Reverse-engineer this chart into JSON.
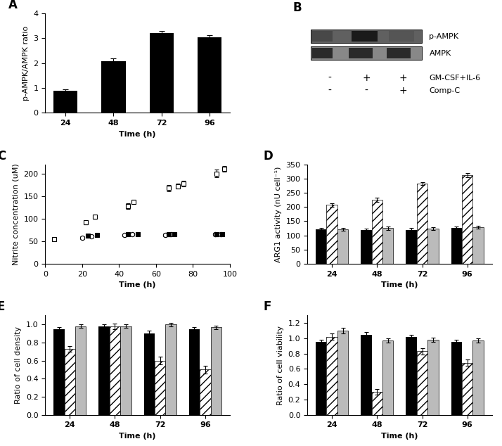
{
  "panel_A": {
    "times": [
      24,
      48,
      72,
      96
    ],
    "values": [
      0.88,
      2.08,
      3.22,
      3.05
    ],
    "errors": [
      0.05,
      0.12,
      0.08,
      0.06
    ],
    "ylabel": "p-AMPK/AMPK ratio",
    "xlabel": "Time (h)",
    "ylim": [
      0,
      4
    ],
    "yticks": [
      0,
      1,
      2,
      3,
      4
    ],
    "bar_color": "black",
    "label": "A"
  },
  "panel_B": {
    "label": "B",
    "conditions": [
      [
        "-",
        "-"
      ],
      [
        "+",
        "-"
      ],
      [
        "+",
        "+"
      ]
    ],
    "condition_labels": [
      "GM-CSF+IL-6",
      "Comp-C"
    ]
  },
  "panel_C": {
    "label": "C",
    "xlabel": "Time (h)",
    "ylabel": "Nitrite concentration (uM)",
    "ylim": [
      0,
      220
    ],
    "yticks": [
      0,
      50,
      100,
      150,
      200
    ],
    "xlim": [
      0,
      100
    ],
    "xticks": [
      0,
      20,
      40,
      60,
      80,
      100
    ],
    "open_squares": {
      "x": [
        5,
        22,
        27,
        45,
        48,
        67,
        72,
        75,
        93,
        97
      ],
      "y": [
        55,
        92,
        104,
        128,
        137,
        168,
        172,
        177,
        200,
        210
      ],
      "yerr": [
        3,
        5,
        4,
        6,
        5,
        7,
        5,
        6,
        8,
        6
      ]
    },
    "open_circles": {
      "x": [
        20,
        25,
        43,
        47,
        65,
        68,
        92,
        95
      ],
      "y": [
        58,
        60,
        63,
        65,
        64,
        66,
        65,
        66
      ],
      "yerr": [
        3,
        3,
        3,
        3,
        3,
        3,
        3,
        3
      ]
    },
    "filled_squares": {
      "x": [
        23,
        28,
        45,
        50,
        67,
        70,
        93,
        96
      ],
      "y": [
        62,
        63,
        65,
        66,
        65,
        65,
        65,
        66
      ],
      "yerr": [
        3,
        4,
        3,
        4,
        4,
        3,
        4,
        3
      ]
    }
  },
  "panel_D": {
    "label": "D",
    "times": [
      24,
      48,
      72,
      96
    ],
    "xlabel": "Time (h)",
    "ylabel": "ARG1 activity (nU cell⁻¹)",
    "ylim": [
      0,
      350
    ],
    "yticks": [
      0,
      50,
      100,
      150,
      200,
      250,
      300,
      350
    ],
    "bar_groups": {
      "black": [
        122,
        118,
        120,
        125
      ],
      "hatched": [
        207,
        225,
        283,
        312
      ],
      "gray": [
        122,
        125,
        124,
        128
      ]
    },
    "errors": {
      "black": [
        5,
        5,
        5,
        5
      ],
      "hatched": [
        6,
        8,
        5,
        8
      ],
      "gray": [
        5,
        5,
        5,
        5
      ]
    }
  },
  "panel_E": {
    "label": "E",
    "times": [
      24,
      48,
      72,
      96
    ],
    "xlabel": "Time (h)",
    "ylabel": "Ratio of cell density",
    "ylim": [
      0.0,
      1.1
    ],
    "yticks": [
      0.0,
      0.2,
      0.4,
      0.6,
      0.8,
      1.0
    ],
    "bar_groups": {
      "black": [
        0.95,
        0.98,
        0.9,
        0.95
      ],
      "hatched": [
        0.73,
        0.98,
        0.6,
        0.5
      ],
      "gray": [
        0.98,
        0.98,
        1.0,
        0.97
      ]
    },
    "errors": {
      "black": [
        0.02,
        0.02,
        0.03,
        0.02
      ],
      "hatched": [
        0.03,
        0.03,
        0.04,
        0.04
      ],
      "gray": [
        0.02,
        0.02,
        0.02,
        0.02
      ]
    }
  },
  "panel_F": {
    "label": "F",
    "times": [
      24,
      48,
      72,
      96
    ],
    "xlabel": "Time (h)",
    "ylabel": "Ratio of cell viability",
    "ylim": [
      0.0,
      1.3
    ],
    "yticks": [
      0.0,
      0.2,
      0.4,
      0.6,
      0.8,
      1.0,
      1.2
    ],
    "bar_groups": {
      "black": [
        0.95,
        1.05,
        1.02,
        0.95
      ],
      "hatched": [
        1.02,
        0.3,
        0.83,
        0.68
      ],
      "gray": [
        1.1,
        0.97,
        0.98,
        0.97
      ]
    },
    "errors": {
      "black": [
        0.03,
        0.03,
        0.03,
        0.03
      ],
      "hatched": [
        0.04,
        0.04,
        0.04,
        0.04
      ],
      "gray": [
        0.04,
        0.03,
        0.03,
        0.03
      ]
    }
  }
}
